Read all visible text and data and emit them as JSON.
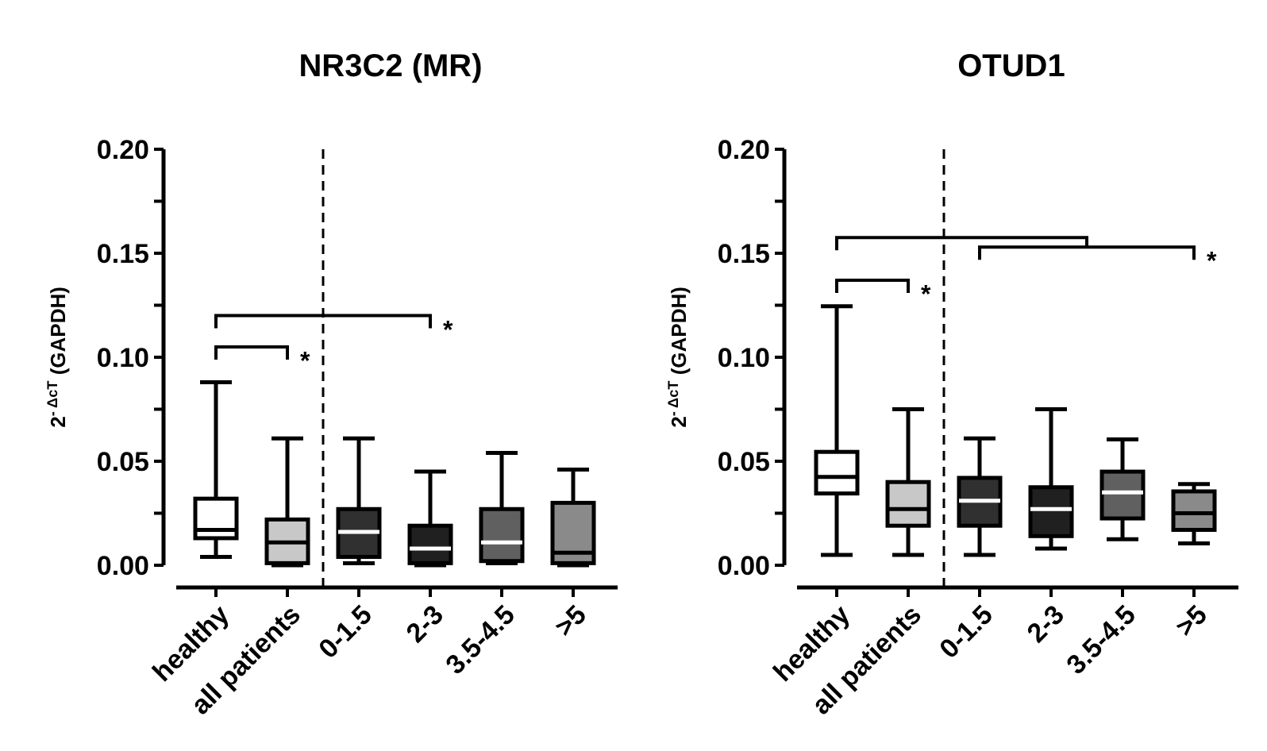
{
  "chart_data": [
    {
      "type": "box",
      "title": "NR3C2 (MR)",
      "ylabel": "2$^{- ΔcT}$ (GAPDH)",
      "categories": [
        "healthy",
        "all patients",
        "0-1.5",
        "2-3",
        "3.5-4.5",
        ">5"
      ],
      "boxes": [
        {
          "low": 0.004,
          "q1": 0.013,
          "median": 0.017,
          "q3": 0.032,
          "high": 0.088
        },
        {
          "low": 0,
          "q1": 0.001,
          "median": 0.011,
          "q3": 0.022,
          "high": 0.061
        },
        {
          "low": 0.001,
          "q1": 0.004,
          "median": 0.016,
          "q3": 0.027,
          "high": 0.061
        },
        {
          "low": 0,
          "q1": 0.001,
          "median": 0.008,
          "q3": 0.019,
          "high": 0.045
        },
        {
          "low": 0.001,
          "q1": 0.002,
          "median": 0.011,
          "q3": 0.027,
          "high": 0.054
        },
        {
          "low": 0,
          "q1": 0.001,
          "median": 0.006,
          "q3": 0.03,
          "high": 0.046
        }
      ],
      "colors": [
        "#ffffff",
        "#c8c8c8",
        "#303030",
        "#202020",
        "#606060",
        "#8a8a8a"
      ],
      "ylim": [
        0,
        0.2
      ],
      "yticks": [
        {
          "value": 0,
          "label": "0.00"
        },
        {
          "value": 0.025,
          "label": null
        },
        {
          "value": 0.05,
          "label": "0.05"
        },
        {
          "value": 0.075,
          "label": null
        },
        {
          "value": 0.1,
          "label": "0.10"
        },
        {
          "value": 0.125,
          "label": null
        },
        {
          "value": 0.15,
          "label": "0.15"
        },
        {
          "value": 0.175,
          "label": null
        },
        {
          "value": 0.2,
          "label": "0.20"
        }
      ],
      "annotations": [
        "*",
        "*"
      ],
      "grid": false
    },
    {
      "type": "box",
      "title": "OTUD1",
      "ylabel": "2$^{- ΔcT}$ (GAPDH)",
      "categories": [
        "healthy",
        "all patients",
        "0-1.5",
        "2-3",
        "3.5-4.5",
        ">5"
      ],
      "boxes": [
        {
          "low": 0.005,
          "q1": 0.0345,
          "median": 0.0425,
          "q3": 0.0545,
          "high": 0.1245
        },
        {
          "low": 0.005,
          "q1": 0.019,
          "median": 0.027,
          "q3": 0.04,
          "high": 0.075
        },
        {
          "low": 0.005,
          "q1": 0.019,
          "median": 0.031,
          "q3": 0.042,
          "high": 0.061
        },
        {
          "low": 0.008,
          "q1": 0.014,
          "median": 0.027,
          "q3": 0.0375,
          "high": 0.075
        },
        {
          "low": 0.0125,
          "q1": 0.0225,
          "median": 0.035,
          "q3": 0.045,
          "high": 0.0605
        },
        {
          "low": 0.0105,
          "q1": 0.017,
          "median": 0.025,
          "q3": 0.0355,
          "high": 0.039
        }
      ],
      "colors": [
        "#ffffff",
        "#c8c8c8",
        "#303030",
        "#202020",
        "#606060",
        "#8a8a8a"
      ],
      "ylim": [
        0,
        0.2
      ],
      "yticks": [
        {
          "value": 0,
          "label": "0.00"
        },
        {
          "value": 0.025,
          "label": null
        },
        {
          "value": 0.05,
          "label": "0.05"
        },
        {
          "value": 0.075,
          "label": null
        },
        {
          "value": 0.1,
          "label": "0.10"
        },
        {
          "value": 0.125,
          "label": null
        },
        {
          "value": 0.15,
          "label": "0.15"
        },
        {
          "value": 0.175,
          "label": null
        },
        {
          "value": 0.2,
          "label": "0.20"
        }
      ],
      "annotations": [
        "*",
        "*"
      ],
      "grid": false
    }
  ]
}
